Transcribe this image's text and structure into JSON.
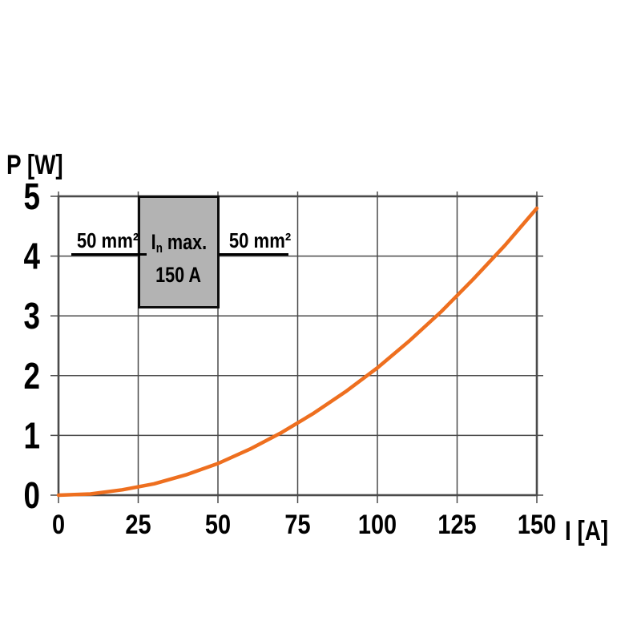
{
  "chart_data": {
    "type": "line",
    "title": "",
    "xlabel": "I [A]",
    "ylabel": "P [W]",
    "xlim": [
      0,
      150
    ],
    "ylim": [
      0,
      5
    ],
    "xticks": [
      0,
      25,
      50,
      75,
      100,
      125,
      150
    ],
    "yticks": [
      0,
      1,
      2,
      3,
      4,
      5
    ],
    "grid": true,
    "grid_color": "#4a4a4a",
    "series": [
      {
        "name": "power-dissipation-curve",
        "color": "#ee6f1f",
        "width": 4.5,
        "x": [
          0,
          10,
          20,
          30,
          40,
          50,
          60,
          70,
          80,
          90,
          100,
          110,
          120,
          130,
          140,
          150
        ],
        "y": [
          0,
          0.02,
          0.09,
          0.19,
          0.34,
          0.53,
          0.77,
          1.05,
          1.37,
          1.73,
          2.13,
          2.58,
          3.07,
          3.61,
          4.18,
          4.8
        ]
      }
    ],
    "annotations": {
      "rating_box": {
        "symbol": "I",
        "subscript": "n",
        "suffix": " max.",
        "line2": "150 A",
        "fill": "#b3b3b3",
        "spans_x": [
          25,
          50
        ]
      },
      "left_wire_label": "50 mm²",
      "right_wire_label": "50 mm²"
    }
  }
}
